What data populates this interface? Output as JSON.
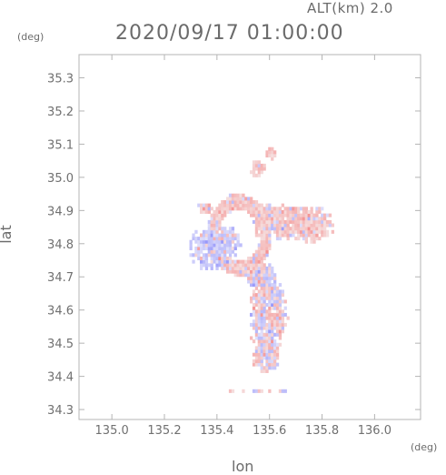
{
  "header": {
    "altitude": "ALT(km) 2.0",
    "datetime": "2020/09/17 01:00:00"
  },
  "axes": {
    "y_unit": "(deg)",
    "x_unit": "(deg)",
    "y_label": "lat",
    "x_label": "lon"
  },
  "chart_data": {
    "type": "heatmap",
    "xlabel": "lon",
    "ylabel": "lat",
    "xlim": [
      134.875,
      136.175
    ],
    "ylim": [
      34.27,
      35.37
    ],
    "x_ticks": [
      135.0,
      135.2,
      135.4,
      135.6,
      135.8,
      136.0
    ],
    "x_tick_labels": [
      "135.0",
      "135.2",
      "135.4",
      "135.6",
      "135.8",
      "136.0"
    ],
    "y_ticks": [
      34.3,
      34.4,
      34.5,
      34.6,
      34.7,
      34.8,
      34.9,
      35.0,
      35.1,
      35.2,
      35.3
    ],
    "y_tick_labels": [
      "34.3",
      "34.4",
      "34.5",
      "34.6",
      "34.7",
      "34.8",
      "34.9",
      "35.0",
      "35.1",
      "35.2",
      "35.3"
    ],
    "colors": {
      "negative": "#8c8cf0",
      "positive": "#f08c8c",
      "frame": "#b4b4b4"
    },
    "regions": [
      {
        "type": "blob",
        "lon": 135.37,
        "lat": 34.78,
        "rx": 0.08,
        "ry": 0.07,
        "sign": -1
      },
      {
        "type": "blob",
        "lon": 135.44,
        "lat": 34.8,
        "rx": 0.05,
        "ry": 0.05,
        "sign": -1
      },
      {
        "type": "ring",
        "lon": 135.48,
        "lat": 34.82,
        "r": 0.1,
        "w": 0.022,
        "sign": 1
      },
      {
        "type": "blob",
        "lon": 135.63,
        "lat": 34.86,
        "rx": 0.12,
        "ry": 0.06,
        "sign": 1
      },
      {
        "type": "blob",
        "lon": 135.76,
        "lat": 34.85,
        "rx": 0.08,
        "ry": 0.06,
        "sign": 1
      },
      {
        "type": "blob",
        "lon": 135.59,
        "lat": 34.57,
        "rx": 0.075,
        "ry": 0.13,
        "sign": 0
      },
      {
        "type": "blob",
        "lon": 135.58,
        "lat": 34.45,
        "rx": 0.05,
        "ry": 0.05,
        "sign": 0
      },
      {
        "type": "blob",
        "lon": 135.56,
        "lat": 34.7,
        "rx": 0.06,
        "ry": 0.04,
        "sign": 0
      },
      {
        "type": "blob",
        "lon": 135.55,
        "lat": 35.02,
        "rx": 0.03,
        "ry": 0.03,
        "sign": 1
      },
      {
        "type": "blob",
        "lon": 135.6,
        "lat": 35.07,
        "rx": 0.02,
        "ry": 0.025,
        "sign": 1
      },
      {
        "type": "blob",
        "lon": 135.35,
        "lat": 34.9,
        "rx": 0.03,
        "ry": 0.02,
        "sign": 1
      },
      {
        "type": "blob",
        "lon": 135.45,
        "lat": 34.93,
        "rx": 0.02,
        "ry": 0.015,
        "sign": 1
      },
      {
        "type": "strip",
        "lon": 135.55,
        "lat": 34.35,
        "rx": 0.12,
        "ry": 0.008,
        "sign": 0
      }
    ]
  }
}
